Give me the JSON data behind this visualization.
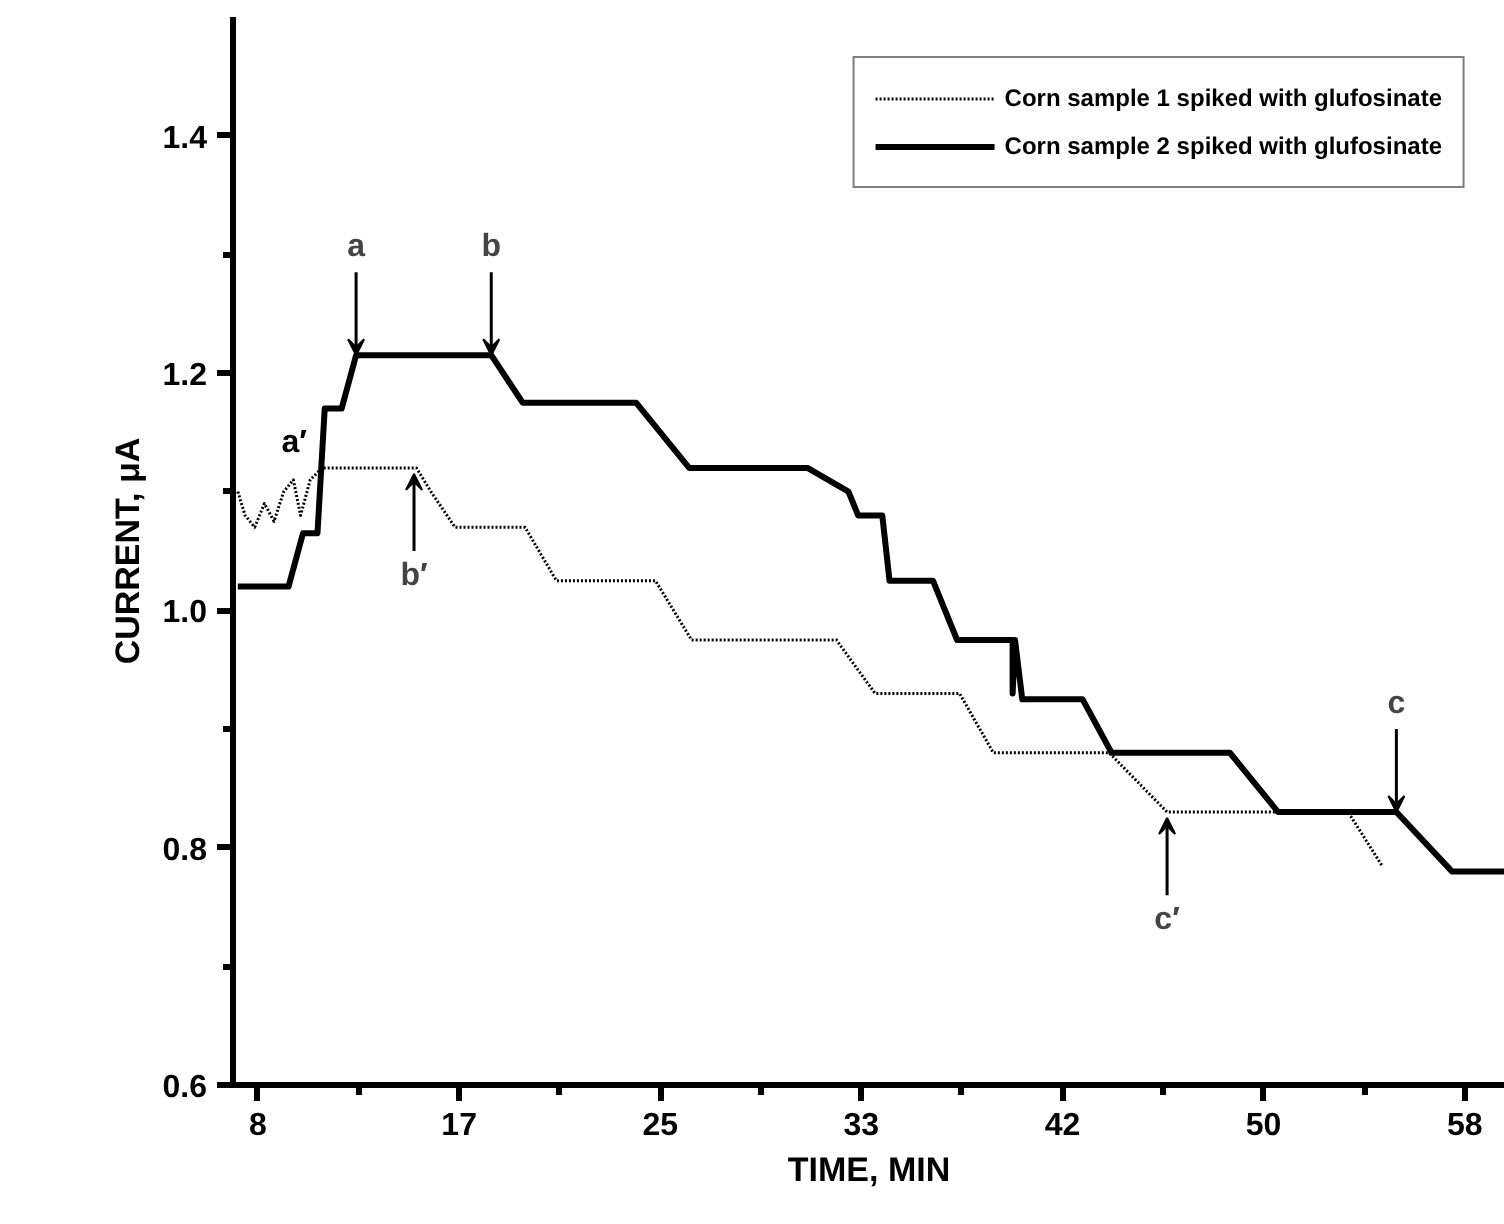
{
  "chart_data": {
    "type": "line",
    "xlabel": "TIME, MIN",
    "ylabel": "CURRENT, μA",
    "xlim": [
      7.3,
      60
    ],
    "ylim": [
      0.6,
      1.5
    ],
    "xticks": [
      {
        "value": 8.33,
        "label": "8"
      },
      {
        "value": 12.5,
        "label": null
      },
      {
        "value": 16.67,
        "label": "17"
      },
      {
        "value": 20.83,
        "label": null
      },
      {
        "value": 25,
        "label": "25"
      },
      {
        "value": 29.17,
        "label": null
      },
      {
        "value": 33.33,
        "label": "33"
      },
      {
        "value": 37.5,
        "label": null
      },
      {
        "value": 41.67,
        "label": "42"
      },
      {
        "value": 45.83,
        "label": null
      },
      {
        "value": 50,
        "label": "50"
      },
      {
        "value": 54.17,
        "label": null
      },
      {
        "value": 58.33,
        "label": "58"
      }
    ],
    "yticks": [
      0.6,
      {
        "value": 0.7,
        "label": null
      },
      0.8,
      {
        "value": 0.9,
        "label": null
      },
      {
        "value": 1.0,
        "label": "1.0"
      },
      {
        "value": 1.1,
        "label": null
      },
      1.2,
      {
        "value": 1.3,
        "label": null
      },
      1.4
    ],
    "grid": false,
    "legend": "top right",
    "marker": "none",
    "series": [
      {
        "name": "Corn sample 1 spiked with glufosinate",
        "color": "#000000",
        "line_style": "dotted",
        "x": [
          7.5,
          7.8,
          8.2,
          8.6,
          9.0,
          9.4,
          9.8,
          10.1,
          10.5,
          11.0,
          14.9,
          15.5,
          16.5,
          19.4,
          20.7,
          24.8,
          26.3,
          32.3,
          33.9,
          37.4,
          38.8,
          43.6,
          46.0,
          53.5,
          54.9
        ],
        "values": [
          1.1,
          1.08,
          1.07,
          1.09,
          1.075,
          1.1,
          1.11,
          1.08,
          1.11,
          1.12,
          1.12,
          1.1,
          1.07,
          1.07,
          1.025,
          1.025,
          0.975,
          0.975,
          0.93,
          0.93,
          0.88,
          0.88,
          0.83,
          0.83,
          0.785
        ]
      },
      {
        "name": "Corn sample 2 spiked with glufosinate",
        "color": "#000000",
        "line_style": "solid",
        "x": [
          7.5,
          9.6,
          10.2,
          10.8,
          11.1,
          11.8,
          12.4,
          18.0,
          19.3,
          24.0,
          26.2,
          31.1,
          32.8,
          33.2,
          34.2,
          34.5,
          36.3,
          37.3,
          39.6,
          39.6,
          39.7,
          40.0,
          42.5,
          43.7,
          48.6,
          50.6,
          55.5,
          57.8,
          60.0
        ],
        "values": [
          1.02,
          1.02,
          1.065,
          1.065,
          1.17,
          1.17,
          1.215,
          1.215,
          1.175,
          1.175,
          1.12,
          1.12,
          1.1,
          1.08,
          1.08,
          1.025,
          1.025,
          0.975,
          0.975,
          0.93,
          0.975,
          0.925,
          0.925,
          0.88,
          0.88,
          0.83,
          0.83,
          0.78,
          0.78
        ]
      }
    ],
    "annotations": [
      {
        "text": "a",
        "x": 12.4,
        "y": 1.215
      },
      {
        "text": "b",
        "x": 18.0,
        "y": 1.215
      },
      {
        "text": "a′",
        "x": 10.5,
        "y": 1.11
      },
      {
        "text": "b′",
        "x": 14.8,
        "y": 1.12
      },
      {
        "text": "c′",
        "x": 46.0,
        "y": 0.83
      },
      {
        "text": "c",
        "x": 55.5,
        "y": 0.83
      }
    ]
  }
}
